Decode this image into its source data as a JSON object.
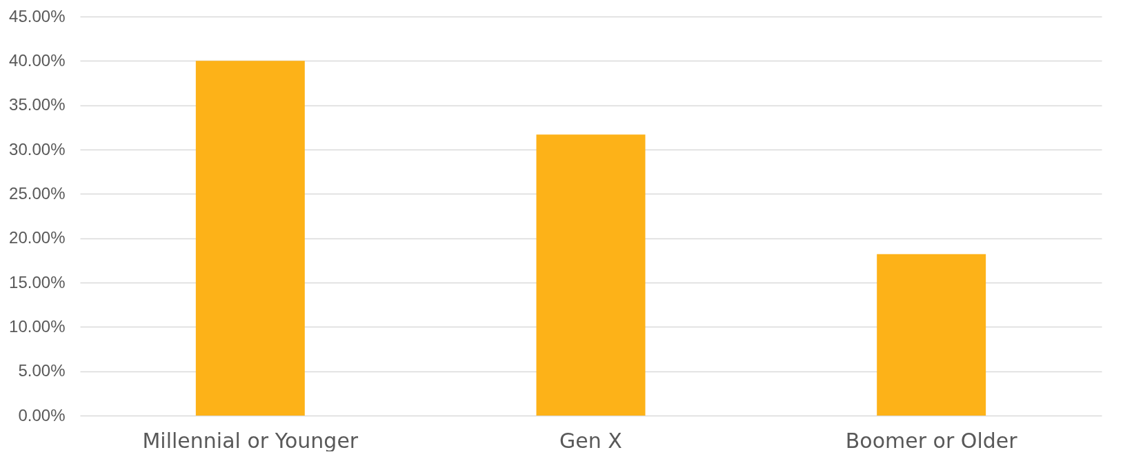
{
  "chart_data": {
    "type": "bar",
    "categories": [
      "Millennial or Younger",
      "Gen X",
      "Boomer or Older"
    ],
    "values": [
      40.0,
      31.7,
      18.2
    ],
    "color": "#fdb218",
    "ylim": [
      0,
      45
    ],
    "yticks": [
      {
        "value": 0,
        "label": "0.00%"
      },
      {
        "value": 5,
        "label": "5.00%"
      },
      {
        "value": 10,
        "label": "10.00%"
      },
      {
        "value": 15,
        "label": "15.00%"
      },
      {
        "value": 20,
        "label": "20.00%"
      },
      {
        "value": 25,
        "label": "25.00%"
      },
      {
        "value": 30,
        "label": "30.00%"
      },
      {
        "value": 35,
        "label": "35.00%"
      },
      {
        "value": 40,
        "label": "40.00%"
      },
      {
        "value": 45,
        "label": "45.00%"
      }
    ],
    "grid": "y"
  }
}
